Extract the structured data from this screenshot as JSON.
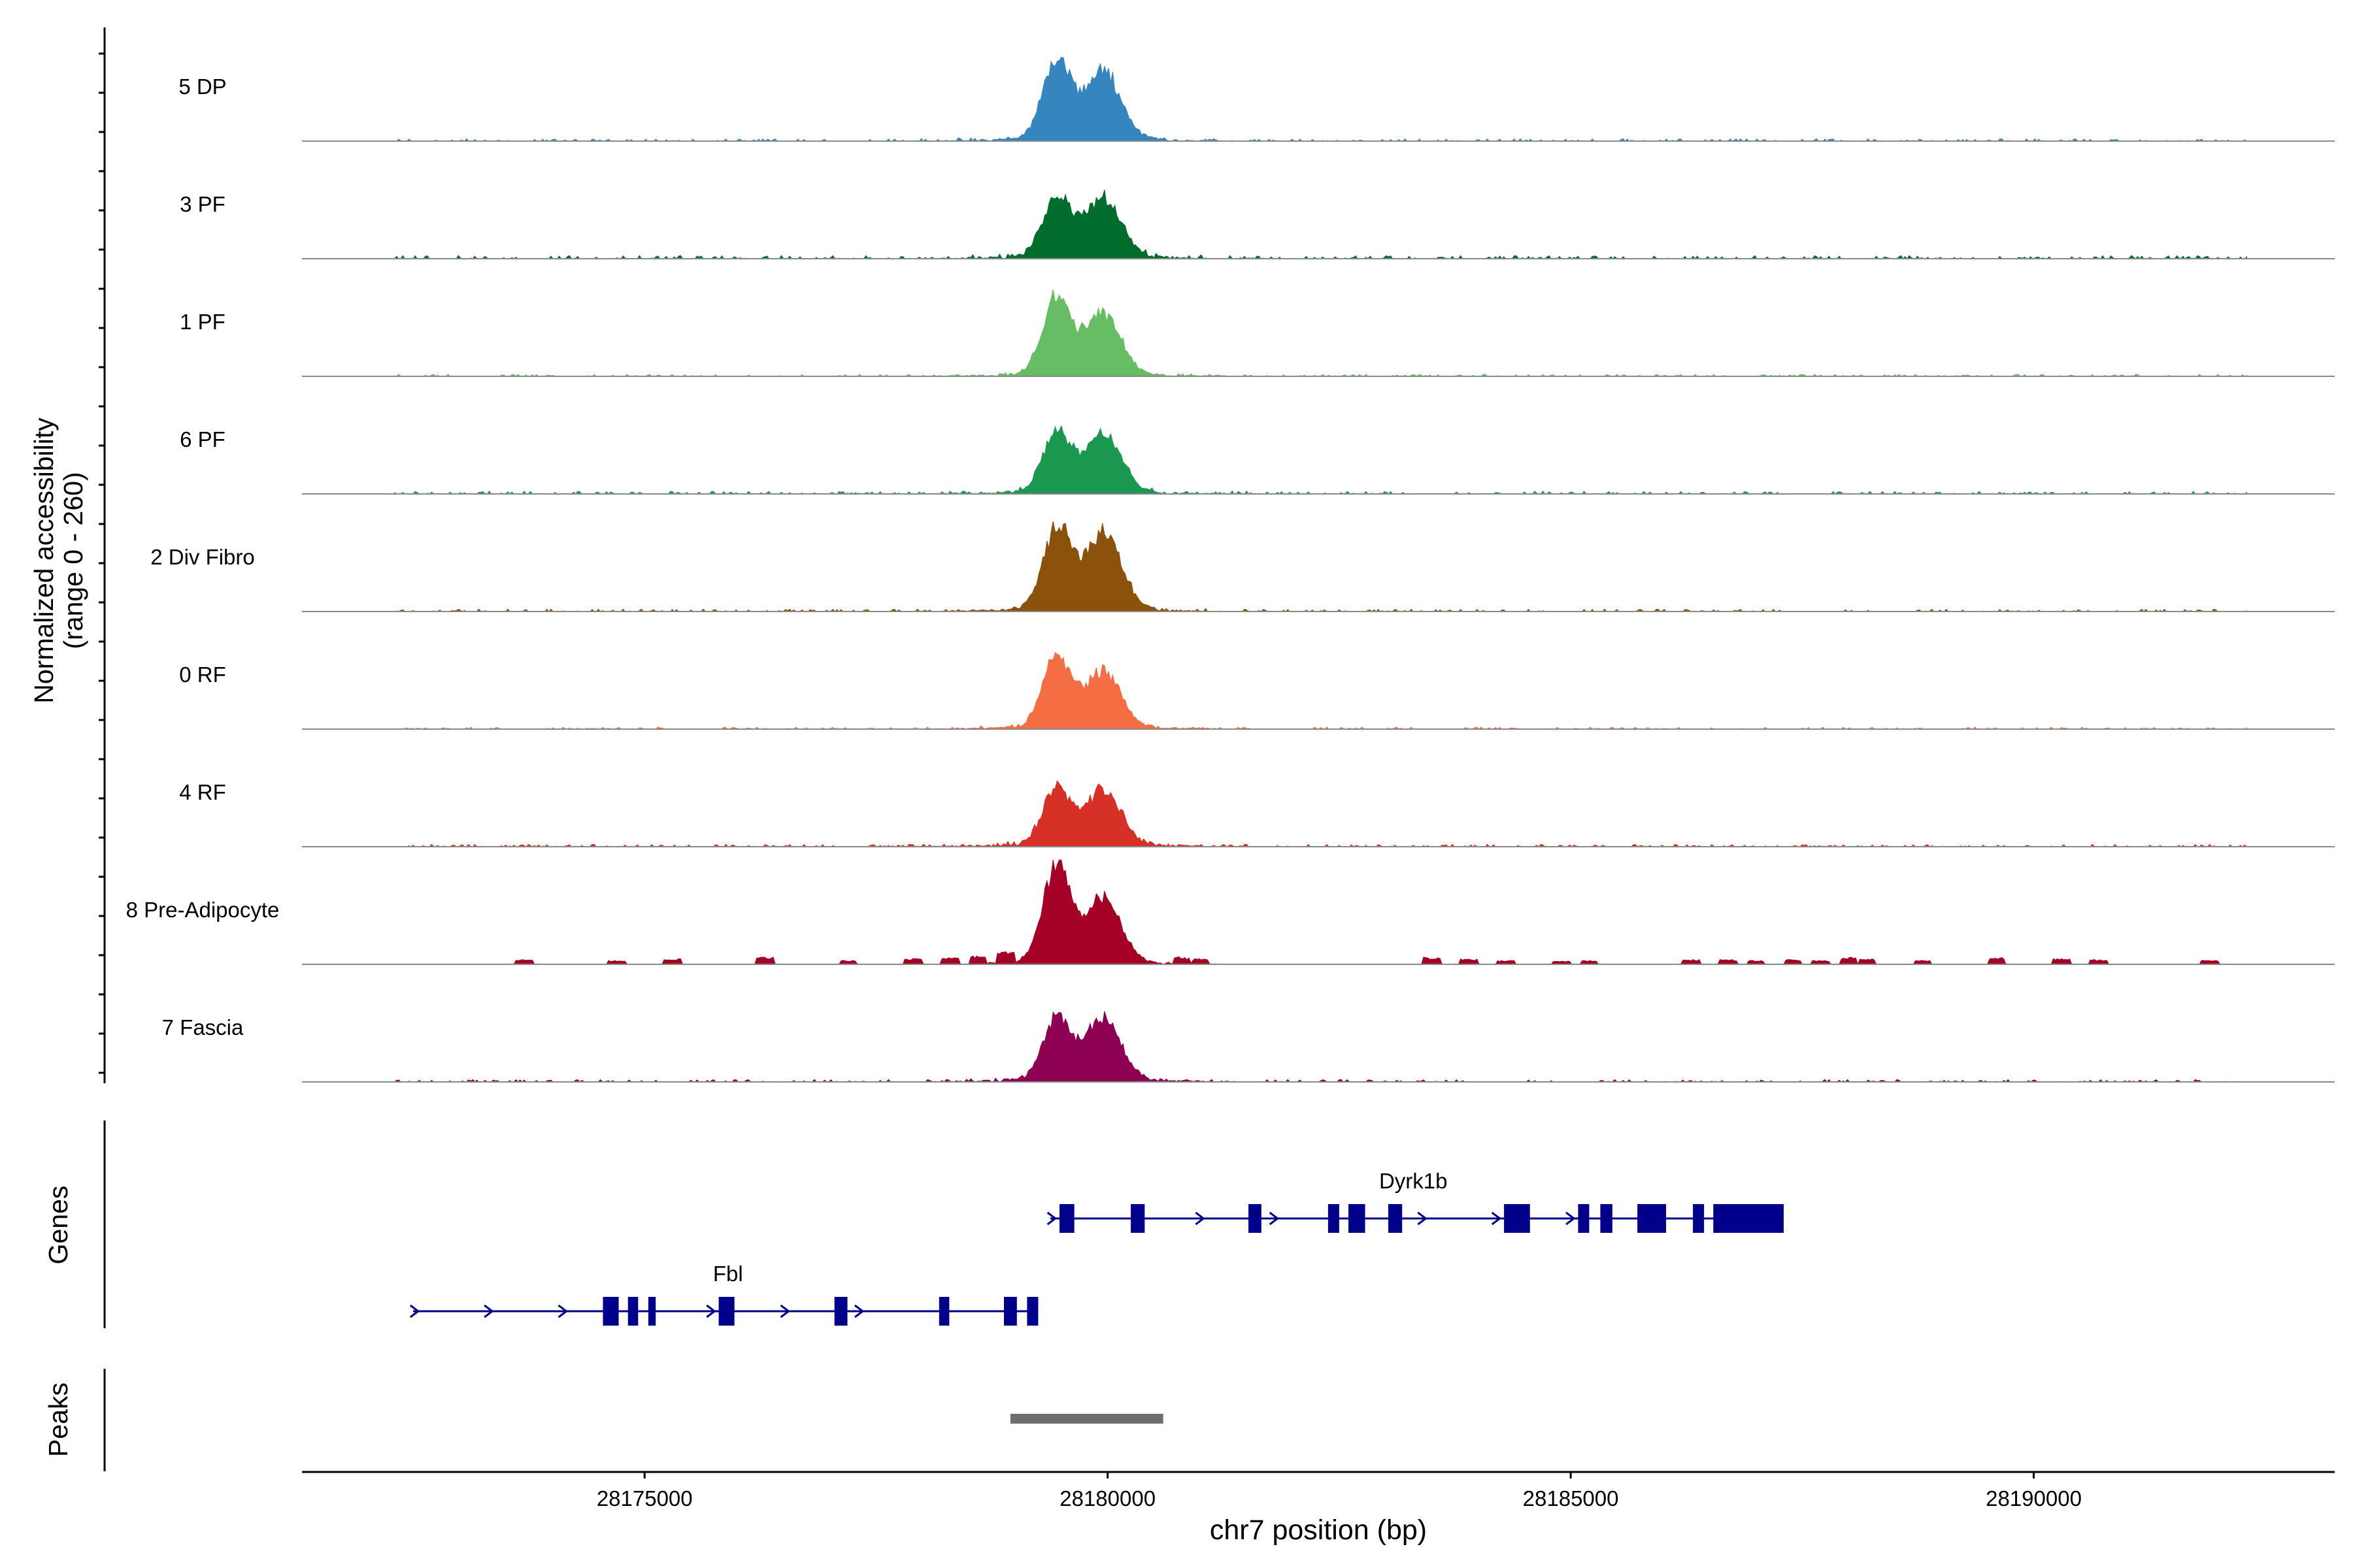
{
  "chart_data": {
    "type": "area",
    "title": "",
    "ylabel": "Normalized accessibility",
    "ylabel_range": "(range 0 - 260)",
    "ylim": [
      0,
      260
    ],
    "xlabel": "chr7 position (bp)",
    "xlim": [
      28171300,
      28193250
    ],
    "xticks": [
      {
        "value": 28175000,
        "label": "28175000"
      },
      {
        "value": 28180000,
        "label": "28180000"
      },
      {
        "value": 28185000,
        "label": "28185000"
      },
      {
        "value": 28190000,
        "label": "28190000"
      }
    ],
    "tracks": [
      {
        "name": "5 DP",
        "color": "#3585BF",
        "peak1": 215,
        "peak2": 185,
        "noise": 6,
        "extra": false
      },
      {
        "name": "3 PF",
        "color": "#006D2C",
        "peak1": 160,
        "peak2": 160,
        "noise": 8,
        "extra": false
      },
      {
        "name": "1 PF",
        "color": "#66BD63",
        "peak1": 210,
        "peak2": 165,
        "noise": 5,
        "extra": false
      },
      {
        "name": "6 PF",
        "color": "#1A9850",
        "peak1": 165,
        "peak2": 160,
        "noise": 7,
        "extra": false
      },
      {
        "name": "2 Div Fibro",
        "color": "#8C510A",
        "peak1": 220,
        "peak2": 210,
        "noise": 6,
        "extra": false
      },
      {
        "name": "0 RF",
        "color": "#F46D43",
        "peak1": 190,
        "peak2": 150,
        "noise": 5,
        "extra": false
      },
      {
        "name": "4 RF",
        "color": "#D73027",
        "peak1": 155,
        "peak2": 150,
        "noise": 6,
        "extra": false
      },
      {
        "name": "8 Pre-Adipocyte",
        "color": "#A50026",
        "peak1": 260,
        "peak2": 175,
        "noise": 0,
        "extra": true
      },
      {
        "name": "7 Fascia",
        "color": "#8E0152",
        "peak1": 165,
        "peak2": 165,
        "noise": 6,
        "extra": false
      }
    ],
    "genes_label": "Genes",
    "genes": [
      {
        "name": "Dyrk1b",
        "strand": "+",
        "start": 28179380,
        "end": 28187300,
        "label_pos": 28183300,
        "exons": [
          [
            28179480,
            28179640
          ],
          [
            28180250,
            28180400
          ],
          [
            28181520,
            28181660
          ],
          [
            28182380,
            28182500
          ],
          [
            28182600,
            28182780
          ],
          [
            28183030,
            28183180
          ],
          [
            28184280,
            28184560
          ],
          [
            28185080,
            28185200
          ],
          [
            28185320,
            28185450
          ],
          [
            28185720,
            28186030
          ],
          [
            28186320,
            28186440
          ],
          [
            28186540,
            28187300
          ]
        ]
      },
      {
        "name": "Fbl",
        "strand": "+",
        "start": 28172500,
        "end": 28179250,
        "label_pos": 28175900,
        "exons": [
          [
            28174550,
            28174720
          ],
          [
            28174820,
            28174930
          ],
          [
            28175040,
            28175120
          ],
          [
            28175800,
            28175970
          ],
          [
            28177050,
            28177190
          ],
          [
            28178180,
            28178290
          ],
          [
            28178880,
            28179020
          ],
          [
            28179130,
            28179250
          ]
        ]
      }
    ],
    "peaks_label": "Peaks",
    "peaks": [
      [
        28178950,
        28180600
      ]
    ]
  }
}
